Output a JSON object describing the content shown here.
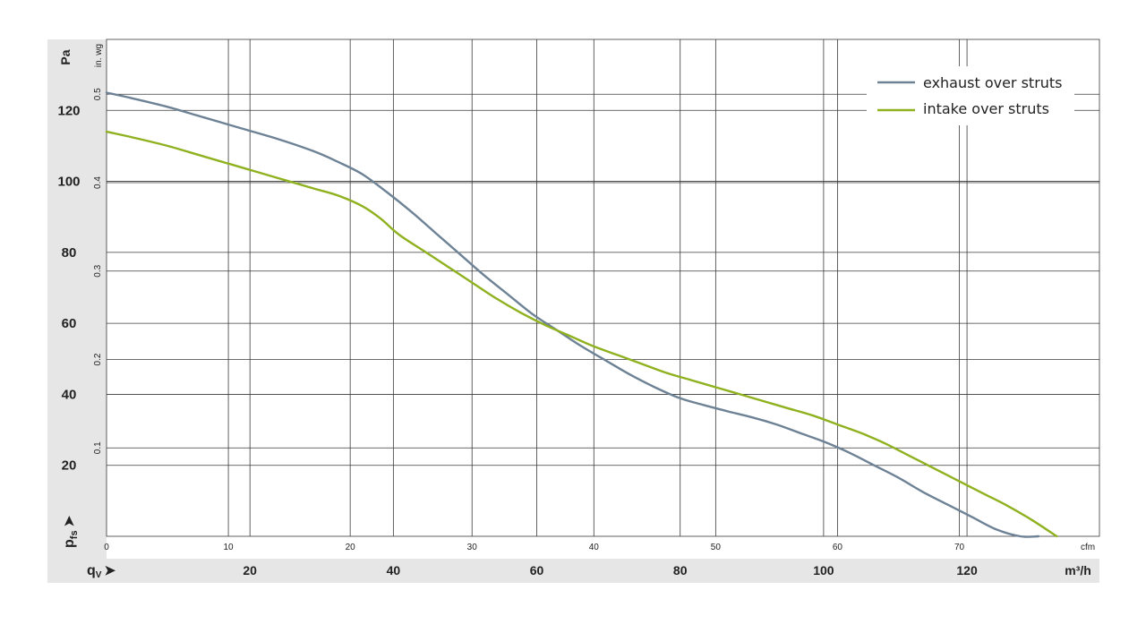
{
  "chart_data": {
    "type": "line",
    "title": "",
    "y_axis_primary": {
      "label": "Pa",
      "ticks": [
        20,
        40,
        60,
        80,
        100,
        120
      ],
      "range": [
        0,
        140
      ]
    },
    "y_axis_secondary": {
      "label": "in. wg",
      "ticks": [
        "0.1",
        "0.2",
        "0.3",
        "0.4",
        "0.5"
      ]
    },
    "y_symbol": {
      "main": "p",
      "sub": "fs",
      "arrow": "➤"
    },
    "x_axis_primary": {
      "label": "cfm",
      "ticks": [
        0,
        10,
        20,
        30,
        40,
        50,
        60,
        70
      ],
      "range": [
        0,
        81.5
      ]
    },
    "x_axis_secondary": {
      "label": "m³/h",
      "ticks": [
        20,
        40,
        60,
        80,
        100,
        120
      ]
    },
    "x_symbol": {
      "main": "q",
      "sub": "V",
      "arrow": "➤"
    },
    "legend_position": "top-right",
    "grid": true,
    "series": [
      {
        "name": "exhaust over struts",
        "color": "#6e8296",
        "x": [
          0,
          2,
          5,
          8,
          11,
          14,
          17,
          19,
          21,
          23,
          25,
          27,
          29,
          31,
          33,
          35,
          37,
          39,
          41,
          43,
          45,
          47,
          49,
          51,
          53,
          55,
          57,
          59,
          61,
          63,
          65,
          67,
          69,
          71,
          73,
          75,
          76.5
        ],
        "y": [
          125,
          123.5,
          121,
          118,
          115,
          112,
          108.5,
          105.5,
          102,
          97,
          91.5,
          85.5,
          79.5,
          73.5,
          68,
          62.5,
          58,
          53.5,
          49.5,
          45.5,
          42,
          39,
          37,
          35.2,
          33.5,
          31.5,
          29,
          26.5,
          23.5,
          20,
          16.5,
          12.5,
          9,
          5.5,
          2,
          0,
          0
        ]
      },
      {
        "name": "intake over struts",
        "color": "#8fb11f",
        "x": [
          0,
          2,
          5,
          8,
          11,
          14,
          17,
          19,
          21,
          22.5,
          24,
          26,
          28,
          30,
          32,
          34,
          36,
          38,
          40,
          42,
          44,
          46,
          48,
          50,
          52,
          54,
          56,
          58,
          60,
          62,
          64,
          66,
          68,
          70,
          72,
          74,
          76,
          78
        ],
        "y": [
          114,
          112.5,
          110,
          107,
          104,
          101,
          98,
          96,
          93,
          89.5,
          85,
          80.5,
          76,
          71.5,
          67,
          63,
          59.5,
          56.5,
          53.5,
          51,
          48.5,
          46,
          44,
          42,
          40,
          38,
          36,
          34,
          31.5,
          29,
          26,
          22.5,
          19,
          15.5,
          12,
          8.5,
          4.5,
          0
        ]
      }
    ]
  }
}
